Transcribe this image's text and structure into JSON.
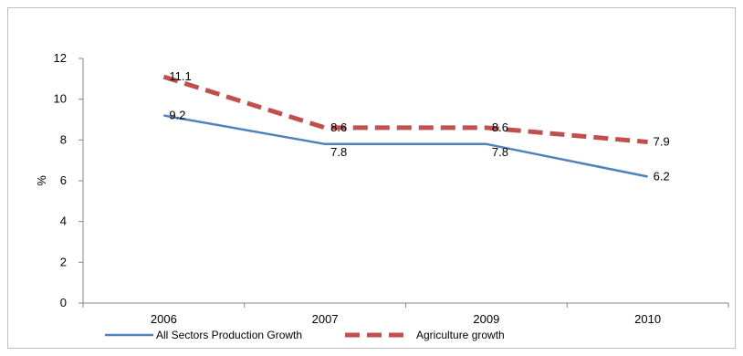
{
  "chart_data": {
    "type": "line",
    "title": "",
    "xlabel": "",
    "ylabel": "%",
    "categories": [
      "2006",
      "2007",
      "2009",
      "2010"
    ],
    "ylim": [
      0,
      12
    ],
    "yticks": [
      0,
      2,
      4,
      6,
      8,
      10,
      12
    ],
    "grid": false,
    "legend": "bottom",
    "series": [
      {
        "name": "All Sectors Production Growth",
        "values": [
          9.2,
          7.8,
          7.8,
          6.2
        ],
        "labels": [
          "9.2",
          "7.8",
          "7.8",
          "6.2"
        ],
        "color": "#4f81bd",
        "style": "solid"
      },
      {
        "name": "Agriculture growth",
        "values": [
          11.1,
          8.6,
          8.6,
          7.9
        ],
        "labels": [
          "11.1",
          "8.6",
          "8.6",
          "7.9"
        ],
        "color": "#c0504d",
        "style": "dashed"
      }
    ]
  }
}
